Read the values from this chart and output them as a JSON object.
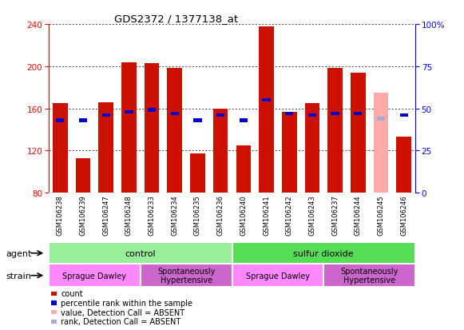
{
  "title": "GDS2372 / 1377138_at",
  "samples": [
    "GSM106238",
    "GSM106239",
    "GSM106247",
    "GSM106248",
    "GSM106233",
    "GSM106234",
    "GSM106235",
    "GSM106236",
    "GSM106240",
    "GSM106241",
    "GSM106242",
    "GSM106243",
    "GSM106237",
    "GSM106244",
    "GSM106245",
    "GSM106246"
  ],
  "count_values": [
    165,
    113,
    166,
    204,
    203,
    198,
    117,
    160,
    125,
    238,
    157,
    165,
    198,
    194,
    175,
    133
  ],
  "rank_values": [
    43,
    43,
    46,
    48,
    49,
    47,
    43,
    46,
    43,
    55,
    47,
    46,
    47,
    47,
    44,
    46
  ],
  "absent_flags": [
    false,
    false,
    false,
    false,
    false,
    false,
    false,
    false,
    false,
    false,
    false,
    false,
    false,
    false,
    true,
    false
  ],
  "ylim_left": [
    80,
    240
  ],
  "ylim_right": [
    0,
    100
  ],
  "yticks_left": [
    80,
    120,
    160,
    200,
    240
  ],
  "yticks_right": [
    0,
    25,
    50,
    75,
    100
  ],
  "bar_color": "#CC1100",
  "rank_color": "#0000CC",
  "absent_bar_color": "#FFAAAA",
  "absent_rank_color": "#AAAACC",
  "tick_area_color": "#CCCCCC",
  "agent_control_color": "#99EE99",
  "agent_so2_color": "#55DD55",
  "strain_sd_color": "#FF88FF",
  "strain_sh_color": "#CC66CC",
  "agent_sections": [
    {
      "label": "control",
      "start": 0,
      "end": 8
    },
    {
      "label": "sulfur dioxide",
      "start": 8,
      "end": 16
    }
  ],
  "strain_sections": [
    {
      "label": "Sprague Dawley",
      "start": 0,
      "end": 4
    },
    {
      "label": "Spontaneously\nHypertensive",
      "start": 4,
      "end": 8
    },
    {
      "label": "Sprague Dawley",
      "start": 8,
      "end": 12
    },
    {
      "label": "Spontaneously\nHypertensive",
      "start": 12,
      "end": 16
    }
  ],
  "legend_items": [
    {
      "label": "count",
      "color": "#CC1100"
    },
    {
      "label": "percentile rank within the sample",
      "color": "#0000CC"
    },
    {
      "label": "value, Detection Call = ABSENT",
      "color": "#FFAAAA"
    },
    {
      "label": "rank, Detection Call = ABSENT",
      "color": "#AAAACC"
    }
  ]
}
